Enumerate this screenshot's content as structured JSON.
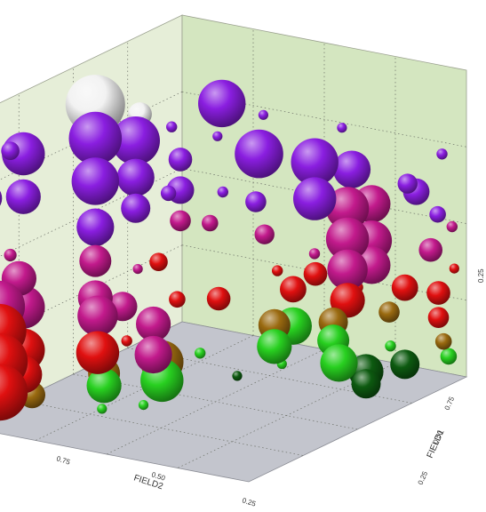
{
  "chart_data": {
    "type": "scatter",
    "subtype": "3d-bubble",
    "title": "",
    "xlabel": "FIELD2",
    "ylabel": "FIELD1",
    "zlabel": "",
    "x_ticks": [
      "0.75",
      "0.50",
      "0.25"
    ],
    "y_ticks": [
      "0.75",
      "0.50",
      "0.25"
    ],
    "z_ticks": [
      "0.25"
    ],
    "xlim": [
      0,
      1
    ],
    "ylim": [
      0,
      1
    ],
    "zlim": [
      0,
      1
    ],
    "grid": true,
    "legend": "none",
    "colors": {
      "back_wall": "#d4e6c0",
      "left_wall": "#e6eed8",
      "floor": "#c3c5cd",
      "violet": "#8a1ee0",
      "magenta": "#c21a8c",
      "red": "#e01010",
      "olive": "#9a6a10",
      "green": "#28d020",
      "dark_green": "#0d5a10",
      "white": "#f2f2f2"
    },
    "color_scale": "z value: green (low) through red, magenta to violet/white (high)",
    "points": [
      {
        "x": 0.92,
        "y": 0.1,
        "z": 0.89,
        "size": 0.25,
        "color": "violet"
      },
      {
        "x": 0.86,
        "y": 0.1,
        "z": 0.86,
        "size": 0.7,
        "color": "violet"
      },
      {
        "x": 0.66,
        "y": 0.2,
        "z": 0.97,
        "size": 1.0,
        "color": "white"
      },
      {
        "x": 0.66,
        "y": 0.2,
        "z": 0.86,
        "size": 0.88,
        "color": "violet"
      },
      {
        "x": 0.52,
        "y": 0.25,
        "z": 0.9,
        "size": 0.35,
        "color": "white"
      },
      {
        "x": 0.54,
        "y": 0.25,
        "z": 0.82,
        "size": 0.8,
        "color": "violet"
      },
      {
        "x": 0.34,
        "y": 0.4,
        "z": 0.9,
        "size": 0.78,
        "color": "violet"
      },
      {
        "x": 0.3,
        "y": 0.5,
        "z": 0.74,
        "size": 0.8,
        "color": "violet"
      },
      {
        "x": 0.86,
        "y": 0.1,
        "z": 0.72,
        "size": 0.55,
        "color": "violet"
      },
      {
        "x": 0.96,
        "y": 0.05,
        "z": 0.74,
        "size": 0.45,
        "color": "violet"
      },
      {
        "x": 0.66,
        "y": 0.2,
        "z": 0.72,
        "size": 0.78,
        "color": "violet"
      },
      {
        "x": 0.66,
        "y": 0.2,
        "z": 0.57,
        "size": 0.6,
        "color": "violet"
      },
      {
        "x": 0.66,
        "y": 0.2,
        "z": 0.46,
        "size": 0.5,
        "color": "magenta"
      },
      {
        "x": 0.54,
        "y": 0.25,
        "z": 0.7,
        "size": 0.6,
        "color": "violet"
      },
      {
        "x": 0.54,
        "y": 0.25,
        "z": 0.6,
        "size": 0.45,
        "color": "violet"
      },
      {
        "x": 0.4,
        "y": 0.3,
        "z": 0.72,
        "size": 0.35,
        "color": "violet"
      },
      {
        "x": 0.4,
        "y": 0.3,
        "z": 0.62,
        "size": 0.42,
        "color": "violet"
      },
      {
        "x": 0.4,
        "y": 0.3,
        "z": 0.52,
        "size": 0.3,
        "color": "magenta"
      },
      {
        "x": 0.24,
        "y": 0.65,
        "z": 0.72,
        "size": 0.78,
        "color": "violet"
      },
      {
        "x": 0.24,
        "y": 0.65,
        "z": 0.6,
        "size": 0.7,
        "color": "violet"
      },
      {
        "x": 0.2,
        "y": 0.75,
        "z": 0.7,
        "size": 0.6,
        "color": "violet"
      },
      {
        "x": 0.22,
        "y": 0.75,
        "z": 0.58,
        "size": 0.7,
        "color": "magenta"
      },
      {
        "x": 0.22,
        "y": 0.75,
        "z": 0.48,
        "size": 0.7,
        "color": "magenta"
      },
      {
        "x": 0.22,
        "y": 0.75,
        "z": 0.38,
        "size": 0.65,
        "color": "magenta"
      },
      {
        "x": 0.22,
        "y": 0.75,
        "z": 0.28,
        "size": 0.55,
        "color": "red"
      },
      {
        "x": 0.2,
        "y": 0.82,
        "z": 0.6,
        "size": 0.6,
        "color": "magenta"
      },
      {
        "x": 0.2,
        "y": 0.82,
        "z": 0.48,
        "size": 0.65,
        "color": "magenta"
      },
      {
        "x": 0.2,
        "y": 0.82,
        "z": 0.4,
        "size": 0.6,
        "color": "magenta"
      },
      {
        "x": 0.1,
        "y": 0.9,
        "z": 0.62,
        "size": 0.4,
        "color": "violet"
      },
      {
        "x": 0.88,
        "y": 0.1,
        "z": 0.46,
        "size": 0.55,
        "color": "magenta"
      },
      {
        "x": 0.86,
        "y": 0.1,
        "z": 0.36,
        "size": 0.7,
        "color": "magenta"
      },
      {
        "x": 0.86,
        "y": 0.1,
        "z": 0.22,
        "size": 0.7,
        "color": "red"
      },
      {
        "x": 0.86,
        "y": 0.1,
        "z": 0.14,
        "size": 0.6,
        "color": "red"
      },
      {
        "x": 0.97,
        "y": 0.1,
        "z": 0.4,
        "size": 0.85,
        "color": "magenta"
      },
      {
        "x": 0.97,
        "y": 0.1,
        "z": 0.32,
        "size": 0.9,
        "color": "red"
      },
      {
        "x": 0.97,
        "y": 0.1,
        "z": 0.22,
        "size": 0.95,
        "color": "red"
      },
      {
        "x": 0.97,
        "y": 0.1,
        "z": 0.12,
        "size": 0.95,
        "color": "red"
      },
      {
        "x": 0.78,
        "y": 0.3,
        "z": 0.34,
        "size": 0.65,
        "color": "magenta"
      },
      {
        "x": 0.78,
        "y": 0.3,
        "z": 0.22,
        "size": 0.7,
        "color": "red"
      },
      {
        "x": 0.72,
        "y": 0.45,
        "z": 0.32,
        "size": 0.55,
        "color": "magenta"
      },
      {
        "x": 0.72,
        "y": 0.45,
        "z": 0.22,
        "size": 0.6,
        "color": "magenta"
      },
      {
        "x": 0.62,
        "y": 0.2,
        "z": 0.08,
        "size": 0.5,
        "color": "olive"
      },
      {
        "x": 0.62,
        "y": 0.2,
        "z": 0.04,
        "size": 0.55,
        "color": "green"
      },
      {
        "x": 0.55,
        "y": 0.35,
        "z": 0.12,
        "size": 0.7,
        "color": "olive"
      },
      {
        "x": 0.55,
        "y": 0.35,
        "z": 0.06,
        "size": 0.7,
        "color": "green"
      },
      {
        "x": 0.82,
        "y": 0.1,
        "z": 0.06,
        "size": 0.4,
        "color": "olive"
      },
      {
        "x": 0.42,
        "y": 0.45,
        "z": 0.3,
        "size": 0.35,
        "color": "red"
      },
      {
        "x": 0.36,
        "y": 0.6,
        "z": 0.22,
        "size": 0.5,
        "color": "olive"
      },
      {
        "x": 0.36,
        "y": 0.6,
        "z": 0.15,
        "size": 0.55,
        "color": "green"
      },
      {
        "x": 0.3,
        "y": 0.62,
        "z": 0.2,
        "size": 0.6,
        "color": "green"
      },
      {
        "x": 0.3,
        "y": 0.62,
        "z": 0.32,
        "size": 0.4,
        "color": "red"
      },
      {
        "x": 0.25,
        "y": 0.66,
        "z": 0.36,
        "size": 0.35,
        "color": "red"
      },
      {
        "x": 0.22,
        "y": 0.7,
        "z": 0.2,
        "size": 0.45,
        "color": "olive"
      },
      {
        "x": 0.22,
        "y": 0.7,
        "z": 0.14,
        "size": 0.5,
        "color": "green"
      },
      {
        "x": 0.22,
        "y": 0.72,
        "z": 0.07,
        "size": 0.6,
        "color": "green"
      },
      {
        "x": 0.2,
        "y": 0.8,
        "z": 0.05,
        "size": 0.55,
        "color": "dark_green"
      },
      {
        "x": 0.2,
        "y": 0.8,
        "z": 0.01,
        "size": 0.45,
        "color": "dark_green"
      },
      {
        "x": 0.1,
        "y": 0.86,
        "z": 0.05,
        "size": 0.45,
        "color": "dark_green"
      },
      {
        "x": 0.12,
        "y": 0.82,
        "z": 0.22,
        "size": 0.3,
        "color": "olive"
      },
      {
        "x": 0.1,
        "y": 0.86,
        "z": 0.3,
        "size": 0.4,
        "color": "red"
      },
      {
        "x": 0.06,
        "y": 0.92,
        "z": 0.42,
        "size": 0.35,
        "color": "magenta"
      },
      {
        "x": 0.05,
        "y": 0.94,
        "z": 0.28,
        "size": 0.35,
        "color": "red"
      },
      {
        "x": 0.05,
        "y": 0.94,
        "z": 0.2,
        "size": 0.3,
        "color": "red"
      },
      {
        "x": 0.04,
        "y": 0.95,
        "z": 0.12,
        "size": 0.22,
        "color": "olive"
      },
      {
        "x": 0.03,
        "y": 0.96,
        "z": 0.07,
        "size": 0.22,
        "color": "green"
      },
      {
        "x": 0.66,
        "y": 0.2,
        "z": 0.34,
        "size": 0.55,
        "color": "magenta"
      },
      {
        "x": 0.6,
        "y": 0.25,
        "z": 0.3,
        "size": 0.45,
        "color": "magenta"
      },
      {
        "x": 0.5,
        "y": 0.3,
        "z": 0.42,
        "size": 0.25,
        "color": "red"
      },
      {
        "x": 0.48,
        "y": 0.35,
        "z": 0.3,
        "size": 0.22,
        "color": "red"
      },
      {
        "x": 0.14,
        "y": 0.9,
        "z": 0.66,
        "size": 0.28,
        "color": "violet"
      },
      {
        "x": 0.08,
        "y": 0.96,
        "z": 0.55,
        "size": 0.22,
        "color": "violet"
      },
      {
        "x": 0.38,
        "y": 0.55,
        "z": 0.62,
        "size": 0.3,
        "color": "violet"
      },
      {
        "x": 0.34,
        "y": 0.55,
        "z": 0.5,
        "size": 0.28,
        "color": "magenta"
      },
      {
        "x": 0.58,
        "y": 0.15,
        "z": 0.74,
        "size": 0.25,
        "color": "violet"
      },
      {
        "x": 0.58,
        "y": 0.15,
        "z": 0.5,
        "size": 0.22,
        "color": "magenta"
      },
      {
        "x": 0.52,
        "y": 0.35,
        "z": 0.66,
        "size": 0.2,
        "color": "violet"
      },
      {
        "x": 0.46,
        "y": 0.45,
        "z": 0.56,
        "size": 0.22,
        "color": "magenta"
      },
      {
        "x": 0.92,
        "y": 0.1,
        "z": 0.55,
        "size": 0.15,
        "color": "magenta"
      },
      {
        "x": 0.95,
        "y": 0.05,
        "z": 0.62,
        "size": 0.12,
        "color": "violet"
      },
      {
        "x": 0.98,
        "y": 0.08,
        "z": 0.28,
        "size": 0.12,
        "color": "red"
      },
      {
        "x": 0.7,
        "y": 0.4,
        "z": 0.04,
        "size": 0.1,
        "color": "green"
      },
      {
        "x": 0.76,
        "y": 0.3,
        "z": 0.03,
        "size": 0.1,
        "color": "green"
      },
      {
        "x": 0.44,
        "y": 0.4,
        "z": 0.12,
        "size": 0.12,
        "color": "green"
      },
      {
        "x": 0.4,
        "y": 0.5,
        "z": 0.05,
        "size": 0.1,
        "color": "dark_green"
      },
      {
        "x": 0.26,
        "y": 0.55,
        "z": 0.05,
        "size": 0.1,
        "color": "green"
      },
      {
        "x": 0.44,
        "y": 0.3,
        "z": 0.84,
        "size": 0.12,
        "color": "violet"
      },
      {
        "x": 0.36,
        "y": 0.4,
        "z": 0.8,
        "size": 0.1,
        "color": "violet"
      },
      {
        "x": 0.28,
        "y": 0.5,
        "z": 0.86,
        "size": 0.1,
        "color": "violet"
      },
      {
        "x": 0.18,
        "y": 0.7,
        "z": 0.82,
        "size": 0.1,
        "color": "violet"
      },
      {
        "x": 0.16,
        "y": 0.74,
        "z": 0.4,
        "size": 0.12,
        "color": "red"
      },
      {
        "x": 0.16,
        "y": 0.74,
        "z": 0.3,
        "size": 0.12,
        "color": "red"
      },
      {
        "x": 0.28,
        "y": 0.68,
        "z": 0.44,
        "size": 0.12,
        "color": "magenta"
      },
      {
        "x": 0.32,
        "y": 0.58,
        "z": 0.38,
        "size": 0.12,
        "color": "red"
      },
      {
        "x": 0.44,
        "y": 0.48,
        "z": 0.66,
        "size": 0.12,
        "color": "violet"
      },
      {
        "x": 0.06,
        "y": 0.96,
        "z": 0.74,
        "size": 0.12,
        "color": "violet"
      },
      {
        "x": 0.04,
        "y": 0.98,
        "z": 0.5,
        "size": 0.12,
        "color": "magenta"
      },
      {
        "x": 0.03,
        "y": 0.98,
        "z": 0.36,
        "size": 0.1,
        "color": "red"
      },
      {
        "x": 0.14,
        "y": 0.84,
        "z": 0.12,
        "size": 0.12,
        "color": "green"
      },
      {
        "x": 0.96,
        "y": 0.08,
        "z": 0.18,
        "size": 0.1,
        "color": "red"
      },
      {
        "x": 0.62,
        "y": 0.28,
        "z": 0.2,
        "size": 0.12,
        "color": "red"
      },
      {
        "x": 0.7,
        "y": 0.38,
        "z": 0.48,
        "size": 0.1,
        "color": "magenta"
      }
    ]
  }
}
